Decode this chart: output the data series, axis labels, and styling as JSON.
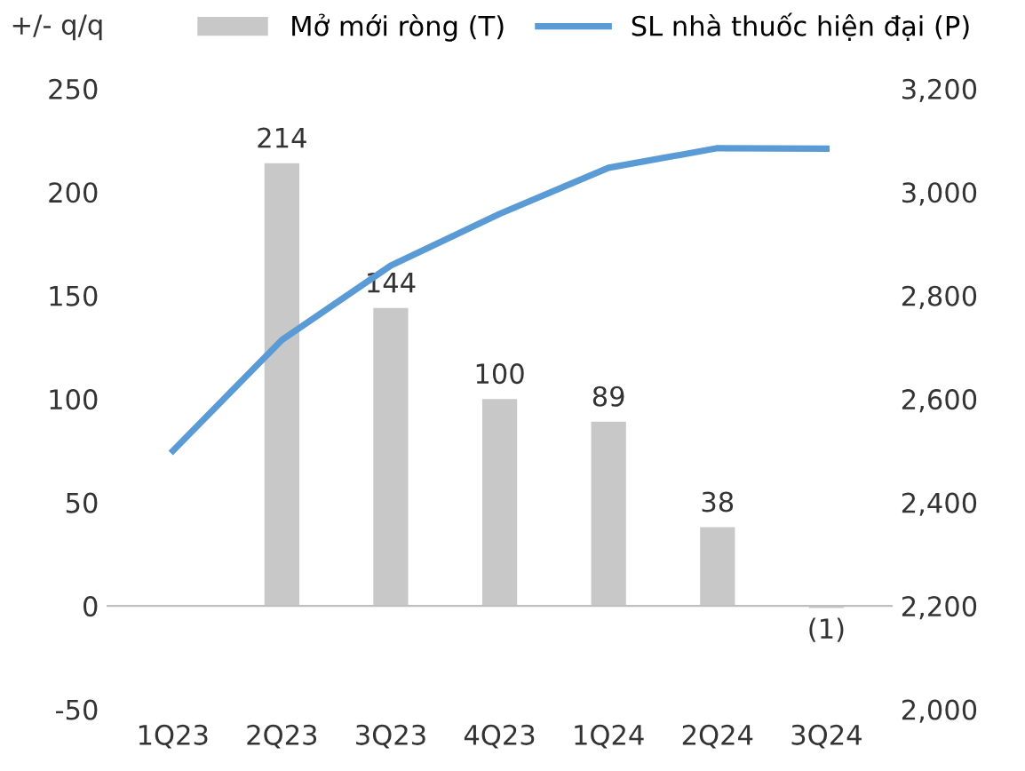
{
  "chart_data": {
    "type": "bar",
    "ylabel": "+/- q/q",
    "categories": [
      "1Q23",
      "2Q23",
      "3Q23",
      "4Q23",
      "1Q24",
      "2Q24",
      "3Q24"
    ],
    "series": [
      {
        "name": "Mở mới ròng (T)",
        "color": "#c8c8c8",
        "values": [
          null,
          214,
          144,
          100,
          89,
          38,
          -1
        ],
        "value_labels": [
          null,
          "214",
          "144",
          "100",
          "89",
          "38",
          "(1)"
        ]
      },
      {
        "name": "SL nhà thuốc hiện đại (P)",
        "type": "line",
        "axis": "y2",
        "color": "#5b9bd5",
        "values": [
          2500,
          2714,
          2858,
          2958,
          3047,
          3085,
          3084
        ]
      }
    ],
    "ylim": [
      -50,
      250
    ],
    "yticks": [
      -50,
      0,
      50,
      100,
      150,
      200,
      250
    ],
    "y2lim": [
      2000,
      3200
    ],
    "y2ticks": [
      {
        "value": 2000,
        "label": "2,000"
      },
      {
        "value": 2200,
        "label": "2,200"
      },
      {
        "value": 2400,
        "label": "2,400"
      },
      {
        "value": 2600,
        "label": "2,600"
      },
      {
        "value": 2800,
        "label": "2,800"
      },
      {
        "value": 3000,
        "label": "3,000"
      },
      {
        "value": 3200,
        "label": "3,200"
      }
    ],
    "legend": "top",
    "marker": "none"
  }
}
